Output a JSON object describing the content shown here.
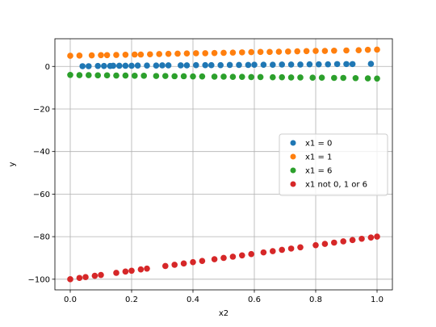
{
  "chart_data": {
    "type": "scatter",
    "title": "",
    "xlabel": "x2",
    "ylabel": "y",
    "xlim": [
      -0.05,
      1.05
    ],
    "ylim": [
      -105,
      13
    ],
    "xticks": [
      0.0,
      0.2,
      0.4,
      0.6,
      0.8,
      1.0
    ],
    "xtick_labels": [
      "0.0",
      "0.2",
      "0.4",
      "0.6",
      "0.8",
      "1.0"
    ],
    "yticks": [
      -100,
      -80,
      -60,
      -40,
      -20,
      0
    ],
    "ytick_labels": [
      "−100",
      "−80",
      "−60",
      "−40",
      "−20",
      "0"
    ],
    "grid": true,
    "legend_position": "center-right",
    "series": [
      {
        "name": "x1 = 0",
        "color": "#1f77b4",
        "points": [
          [
            0.04,
            0.1
          ],
          [
            0.06,
            0.1
          ],
          [
            0.09,
            0.2
          ],
          [
            0.11,
            0.2
          ],
          [
            0.13,
            0.2
          ],
          [
            0.14,
            0.3
          ],
          [
            0.16,
            0.3
          ],
          [
            0.18,
            0.3
          ],
          [
            0.2,
            0.3
          ],
          [
            0.22,
            0.4
          ],
          [
            0.25,
            0.4
          ],
          [
            0.28,
            0.4
          ],
          [
            0.3,
            0.5
          ],
          [
            0.32,
            0.5
          ],
          [
            0.36,
            0.5
          ],
          [
            0.38,
            0.5
          ],
          [
            0.41,
            0.6
          ],
          [
            0.44,
            0.6
          ],
          [
            0.46,
            0.6
          ],
          [
            0.49,
            0.6
          ],
          [
            0.52,
            0.7
          ],
          [
            0.55,
            0.7
          ],
          [
            0.58,
            0.7
          ],
          [
            0.6,
            0.8
          ],
          [
            0.63,
            0.8
          ],
          [
            0.66,
            0.8
          ],
          [
            0.69,
            0.9
          ],
          [
            0.72,
            0.9
          ],
          [
            0.75,
            0.9
          ],
          [
            0.78,
            1.0
          ],
          [
            0.81,
            1.0
          ],
          [
            0.84,
            1.0
          ],
          [
            0.87,
            1.1
          ],
          [
            0.9,
            1.1
          ],
          [
            0.92,
            1.1
          ],
          [
            0.98,
            1.2
          ]
        ]
      },
      {
        "name": "x1 = 1",
        "color": "#ff7f0e",
        "points": [
          [
            0.0,
            5.0
          ],
          [
            0.03,
            5.1
          ],
          [
            0.07,
            5.2
          ],
          [
            0.1,
            5.3
          ],
          [
            0.12,
            5.3
          ],
          [
            0.15,
            5.4
          ],
          [
            0.18,
            5.5
          ],
          [
            0.21,
            5.6
          ],
          [
            0.23,
            5.6
          ],
          [
            0.26,
            5.7
          ],
          [
            0.29,
            5.8
          ],
          [
            0.32,
            5.9
          ],
          [
            0.35,
            6.0
          ],
          [
            0.38,
            6.1
          ],
          [
            0.41,
            6.2
          ],
          [
            0.44,
            6.2
          ],
          [
            0.47,
            6.3
          ],
          [
            0.5,
            6.4
          ],
          [
            0.53,
            6.5
          ],
          [
            0.56,
            6.6
          ],
          [
            0.59,
            6.7
          ],
          [
            0.62,
            6.8
          ],
          [
            0.65,
            6.8
          ],
          [
            0.68,
            6.9
          ],
          [
            0.71,
            7.0
          ],
          [
            0.74,
            7.1
          ],
          [
            0.77,
            7.2
          ],
          [
            0.8,
            7.3
          ],
          [
            0.83,
            7.3
          ],
          [
            0.86,
            7.4
          ],
          [
            0.9,
            7.5
          ],
          [
            0.94,
            7.6
          ],
          [
            0.97,
            7.8
          ],
          [
            1.0,
            7.9
          ]
        ]
      },
      {
        "name": "x1 = 6",
        "color": "#2ca02c",
        "points": [
          [
            0.0,
            -4.0
          ],
          [
            0.03,
            -4.1
          ],
          [
            0.06,
            -4.1
          ],
          [
            0.09,
            -4.2
          ],
          [
            0.12,
            -4.2
          ],
          [
            0.15,
            -4.3
          ],
          [
            0.18,
            -4.3
          ],
          [
            0.21,
            -4.4
          ],
          [
            0.24,
            -4.4
          ],
          [
            0.28,
            -4.5
          ],
          [
            0.31,
            -4.5
          ],
          [
            0.34,
            -4.6
          ],
          [
            0.37,
            -4.6
          ],
          [
            0.4,
            -4.7
          ],
          [
            0.43,
            -4.7
          ],
          [
            0.47,
            -4.8
          ],
          [
            0.5,
            -4.8
          ],
          [
            0.53,
            -4.9
          ],
          [
            0.56,
            -4.9
          ],
          [
            0.59,
            -5.0
          ],
          [
            0.62,
            -5.0
          ],
          [
            0.66,
            -5.1
          ],
          [
            0.69,
            -5.1
          ],
          [
            0.72,
            -5.2
          ],
          [
            0.75,
            -5.2
          ],
          [
            0.79,
            -5.3
          ],
          [
            0.82,
            -5.3
          ],
          [
            0.86,
            -5.4
          ],
          [
            0.89,
            -5.4
          ],
          [
            0.93,
            -5.5
          ],
          [
            0.97,
            -5.6
          ],
          [
            1.0,
            -5.7
          ]
        ]
      },
      {
        "name": "x1 not 0, 1 or 6",
        "color": "#d62728",
        "points": [
          [
            0.0,
            -100.0
          ],
          [
            0.03,
            -99.4
          ],
          [
            0.05,
            -99.0
          ],
          [
            0.08,
            -98.4
          ],
          [
            0.1,
            -98.0
          ],
          [
            0.15,
            -97.0
          ],
          [
            0.18,
            -96.4
          ],
          [
            0.2,
            -96.0
          ],
          [
            0.23,
            -95.4
          ],
          [
            0.25,
            -95.0
          ],
          [
            0.31,
            -93.8
          ],
          [
            0.34,
            -93.2
          ],
          [
            0.37,
            -92.6
          ],
          [
            0.4,
            -92.0
          ],
          [
            0.43,
            -91.4
          ],
          [
            0.47,
            -90.6
          ],
          [
            0.5,
            -90.0
          ],
          [
            0.53,
            -89.4
          ],
          [
            0.56,
            -88.8
          ],
          [
            0.59,
            -88.2
          ],
          [
            0.63,
            -87.4
          ],
          [
            0.66,
            -86.8
          ],
          [
            0.69,
            -86.2
          ],
          [
            0.72,
            -85.6
          ],
          [
            0.75,
            -85.0
          ],
          [
            0.8,
            -84.0
          ],
          [
            0.83,
            -83.4
          ],
          [
            0.86,
            -82.8
          ],
          [
            0.89,
            -82.2
          ],
          [
            0.92,
            -81.6
          ],
          [
            0.95,
            -81.0
          ],
          [
            0.98,
            -80.4
          ],
          [
            1.0,
            -80.0
          ]
        ]
      }
    ]
  }
}
